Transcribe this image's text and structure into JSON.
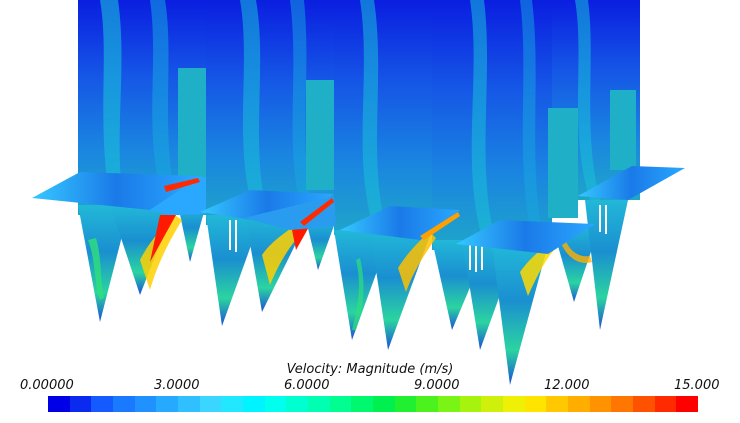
{
  "legend": {
    "title": "Velocity: Magnitude (m/s)",
    "ticks": [
      "0.00000",
      "3.0000",
      "6.0000",
      "9.0000",
      "12.000",
      "15.000"
    ],
    "range": [
      0,
      15
    ]
  },
  "colormap": [
    "#0000e6",
    "#0a2af0",
    "#145aff",
    "#1a7aff",
    "#1f92ff",
    "#26aaff",
    "#30c0ff",
    "#3ad6ff",
    "#22e8ff",
    "#00f4ff",
    "#00ffec",
    "#00ffd0",
    "#00ffb0",
    "#00ff90",
    "#00f86e",
    "#00f050",
    "#20f030",
    "#4cf21e",
    "#7af414",
    "#a6f40e",
    "#cff00a",
    "#eef006",
    "#ffe400",
    "#ffc800",
    "#ffae00",
    "#ff9200",
    "#ff7600",
    "#ff5200",
    "#ff2a00",
    "#ff0000"
  ]
}
